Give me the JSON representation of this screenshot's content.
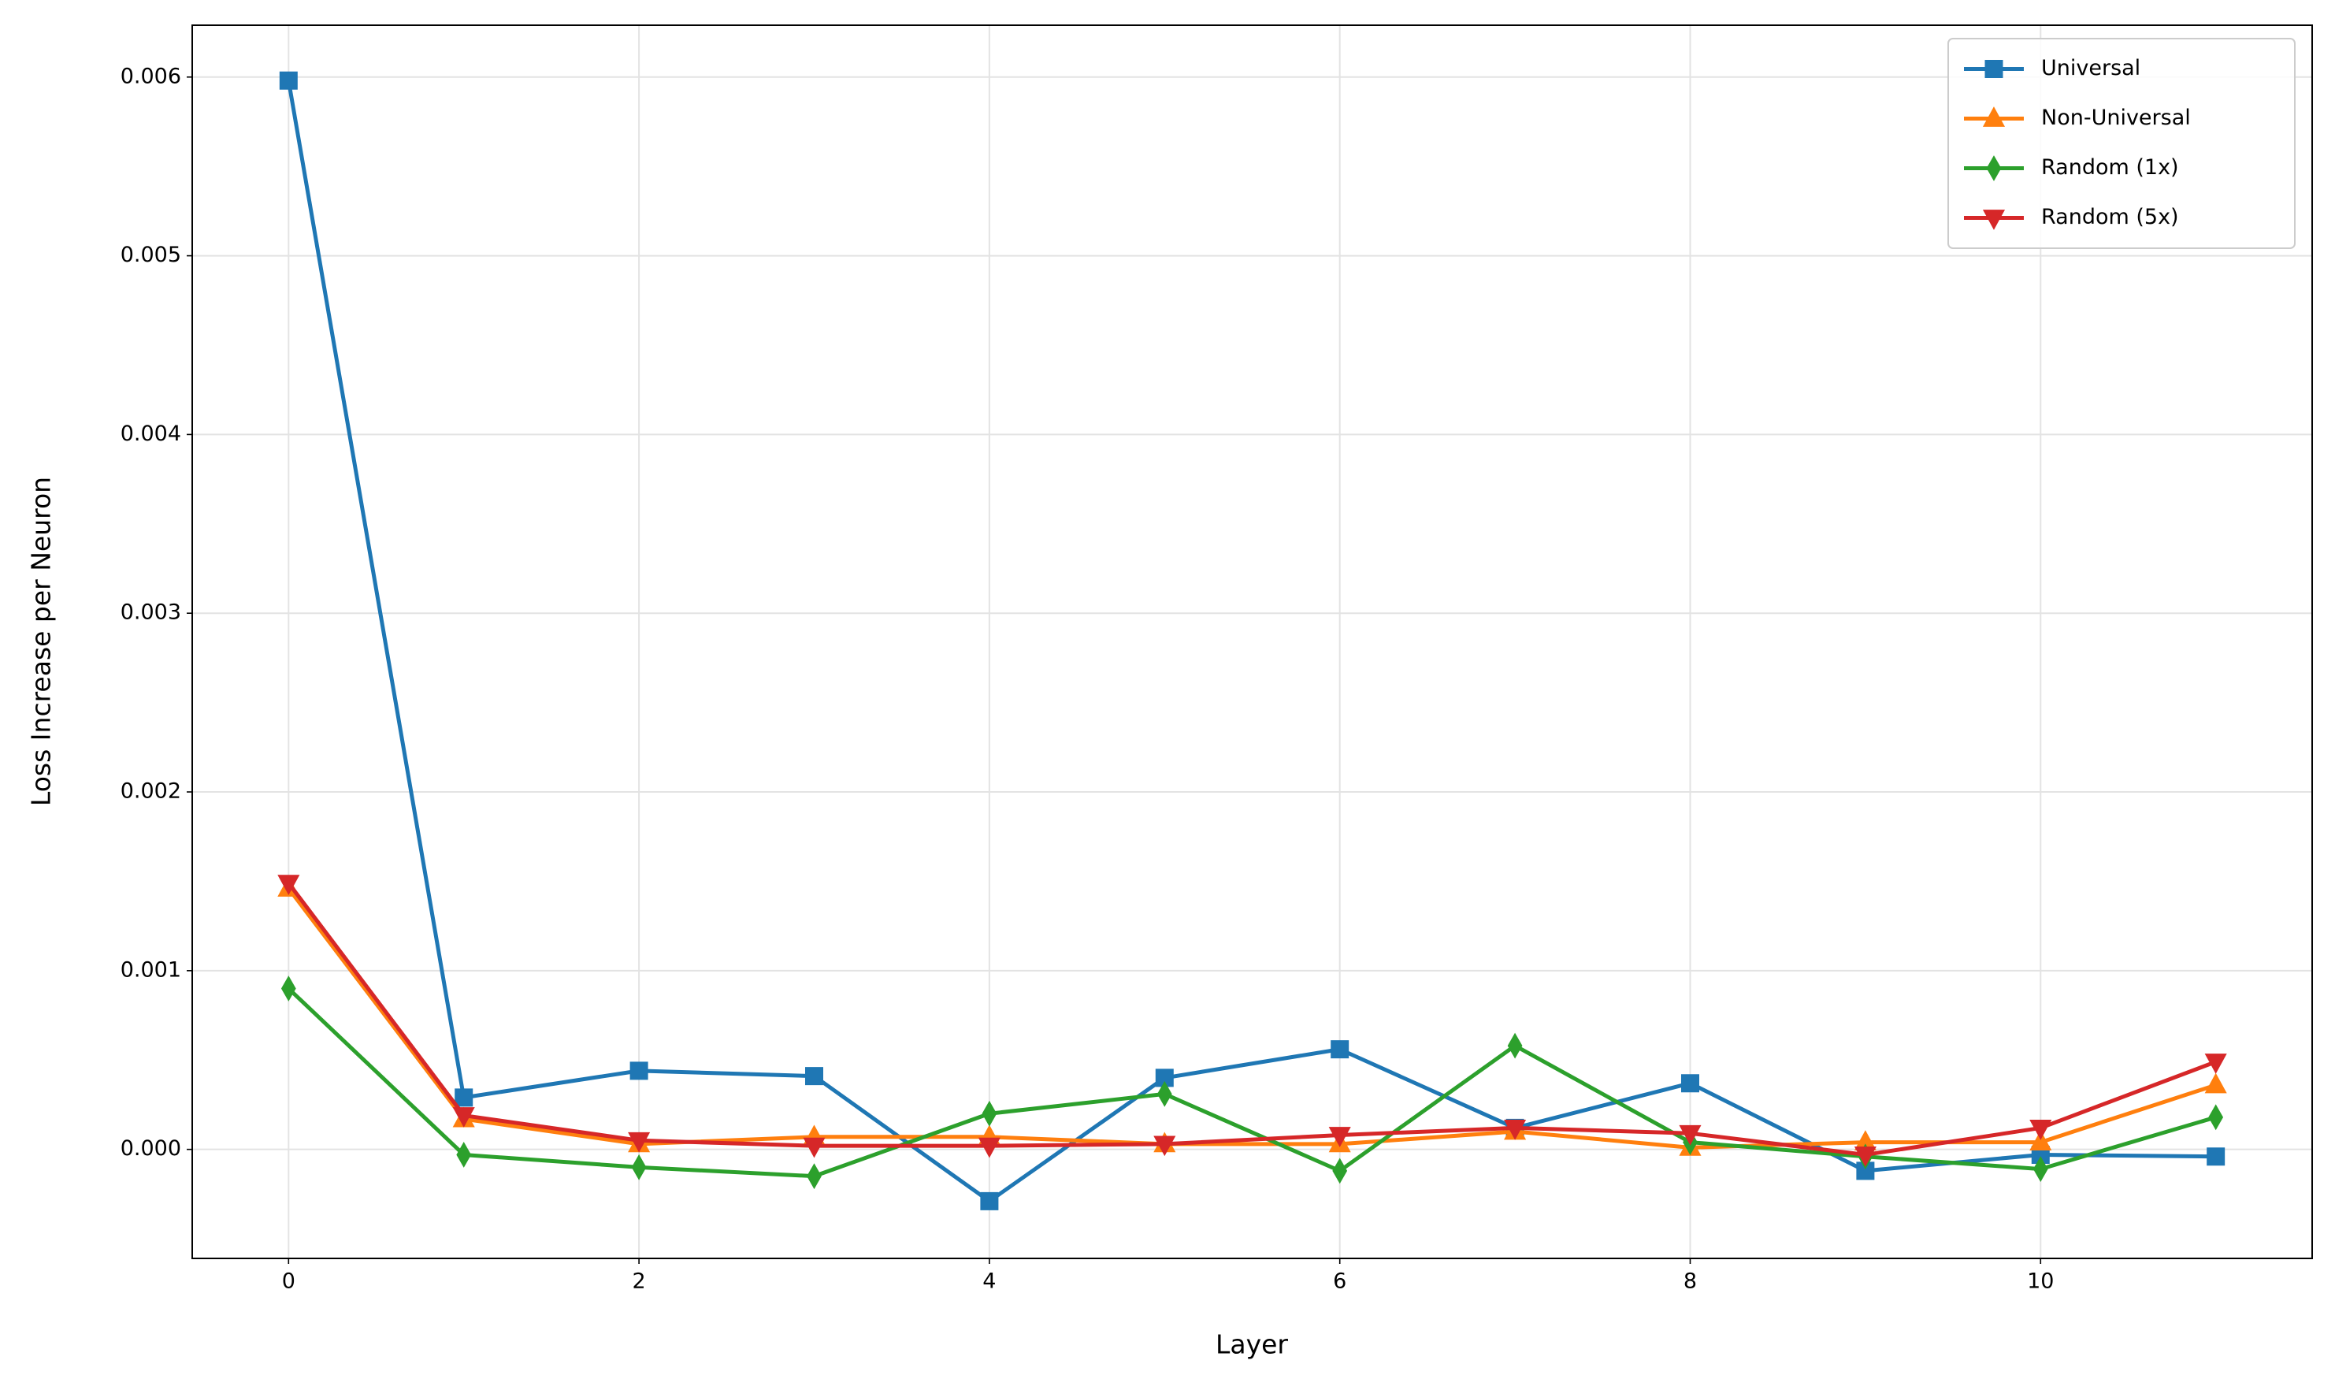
{
  "chart_data": {
    "type": "line",
    "xlabel": "Layer",
    "ylabel": "Loss Increase per Neuron",
    "x": [
      0,
      1,
      2,
      3,
      4,
      5,
      6,
      7,
      8,
      9,
      10,
      11
    ],
    "series": [
      {
        "name": "Universal",
        "color": "#1f77b4",
        "marker": "square",
        "values": [
          0.00598,
          0.00029,
          0.00044,
          0.00041,
          -0.00029,
          0.0004,
          0.00056,
          0.00012,
          0.00037,
          -0.00012,
          -3e-05,
          -4e-05
        ]
      },
      {
        "name": "Non-Universal",
        "color": "#ff7f0e",
        "marker": "triangle-up",
        "values": [
          0.00146,
          0.00017,
          3e-05,
          7e-05,
          7e-05,
          3e-05,
          3e-05,
          0.0001,
          1e-05,
          4e-05,
          4e-05,
          0.00036
        ]
      },
      {
        "name": "Random (1x)",
        "color": "#2ca02c",
        "marker": "diamond",
        "values": [
          0.0009,
          -3e-05,
          -0.0001,
          -0.00015,
          0.0002,
          0.00031,
          -0.00012,
          0.00058,
          4e-05,
          -4e-05,
          -0.00011,
          0.00018
        ]
      },
      {
        "name": "Random (5x)",
        "color": "#d62728",
        "marker": "triangle-down",
        "values": [
          0.00149,
          0.00019,
          5e-05,
          2e-05,
          2e-05,
          3e-05,
          8e-05,
          0.00012,
          9e-05,
          -3e-05,
          0.00012,
          0.00049
        ]
      }
    ],
    "xlim": [
      -0.55,
      11.55
    ],
    "xticks": [
      0,
      2,
      4,
      6,
      8,
      10
    ],
    "ylim": [
      -0.00061,
      0.00629
    ],
    "yticks": [
      {
        "value": 0,
        "label": "0.000"
      },
      {
        "value": 0.001,
        "label": "0.001"
      },
      {
        "value": 0.002,
        "label": "0.002"
      },
      {
        "value": 0.003,
        "label": "0.003"
      },
      {
        "value": 0.004,
        "label": "0.004"
      },
      {
        "value": 0.005,
        "label": "0.005"
      },
      {
        "value": 0.006,
        "label": "0.006"
      }
    ],
    "grid": true,
    "legend": "upper right"
  }
}
